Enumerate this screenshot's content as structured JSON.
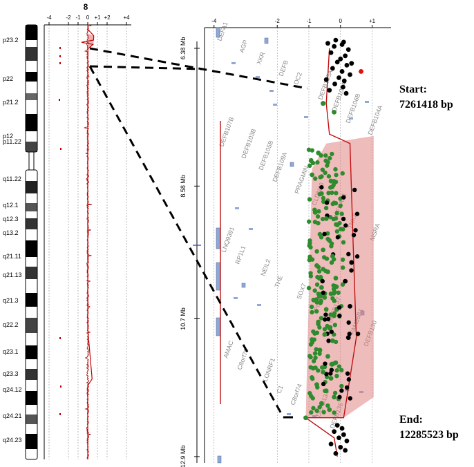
{
  "chromosome": {
    "number": "8",
    "bands": [
      "p23.2",
      "p22",
      "p21.2",
      "p12",
      "p11.22",
      "q11.22",
      "q12.1",
      "q12.3",
      "q13.2",
      "q21.11",
      "q21.13",
      "q21.3",
      "q22.2",
      "q23.1",
      "q23.3",
      "q24.12",
      "q24.21",
      "q24.23"
    ]
  },
  "chart_data": [
    {
      "type": "line",
      "panel": "whole-chromosome log2 ratio",
      "x_ticks": [
        "-4",
        "-2",
        "-1",
        "0",
        "+1",
        "+2",
        "+4"
      ],
      "x_tick_values": [
        -4,
        -2,
        -1,
        0,
        1,
        2,
        4
      ],
      "xlim": [
        -4.5,
        4.5
      ],
      "title": "8",
      "ylabel": "",
      "series": [
        {
          "values": [
            [
              0.02,
              0.0
            ],
            [
              0.0,
              0.01
            ],
            [
              0.62,
              0.025
            ],
            [
              0.6,
              0.035
            ],
            [
              -0.65,
              0.04
            ],
            [
              0.55,
              0.045
            ],
            [
              0.02,
              0.055
            ],
            [
              0.0,
              0.1
            ],
            [
              0.0,
              0.2
            ],
            [
              0.0,
              0.3
            ],
            [
              0.0,
              0.4
            ],
            [
              0.0,
              0.5
            ],
            [
              0.0,
              0.6
            ],
            [
              0.0,
              0.7
            ],
            [
              0.45,
              0.815
            ],
            [
              0.0,
              0.83
            ],
            [
              0.0,
              0.9
            ],
            [
              0.0,
              1.0
            ]
          ]
        }
      ]
    },
    {
      "type": "scatter",
      "panel": "zoomed region log2 ratio",
      "x_ticks": [
        "-4",
        "-2",
        "-1",
        "0",
        "+1"
      ],
      "x_tick_values": [
        -4,
        -2,
        -1,
        0,
        1
      ],
      "xlim": [
        -4.3,
        1.6
      ],
      "y_ticks": [
        "6.38 Mb",
        "8.58 Mb",
        "10.7 Mb",
        "12.9 Mb"
      ],
      "y_tick_values": [
        6.38,
        8.58,
        10.7,
        12.9
      ],
      "ylim": [
        6.05,
        13.0
      ],
      "title": "",
      "xlabel": "",
      "ylabel": "",
      "gene_labels": [
        "DEFA1",
        "AGP",
        "XKR",
        "DEFB",
        "LOC2",
        "DEFB105A",
        "DEFB103A",
        "DEFB106B",
        "DEFB104A",
        "DEFB107B",
        "DEFB103B",
        "DEFB105B",
        "DEFB109A",
        "PRAGMIN",
        "CLDN23",
        "MFHAS1",
        "TNKS",
        "MSRA",
        "LNQ9391",
        "RP1L1",
        "NEIL2",
        "THE",
        "SOX7",
        "PINX1",
        "DEFB137",
        "FAM86B1",
        "DEFB130",
        "AMAC",
        "C8orf79",
        "LONRF1",
        "C1",
        "C8orf74",
        "DEFB134",
        "DEFB136"
      ],
      "segments": [
        [
          -0.35,
          6.38
        ],
        [
          -0.45,
          7.26
        ],
        [
          -0.35,
          7.75
        ],
        [
          0.3,
          7.9
        ],
        [
          0.4,
          9.5
        ],
        [
          0.5,
          11.0
        ],
        [
          0.1,
          12.28
        ],
        [
          -1.1,
          12.28
        ],
        [
          -0.2,
          12.6
        ],
        [
          -0.1,
          12.9
        ]
      ],
      "aberration_region": [
        7.9,
        12.28
      ],
      "series": [
        {
          "name": "",
          "color": "#000000",
          "points": [
            [
              -0.15,
              6.25
            ],
            [
              0.1,
              6.28
            ],
            [
              0.05,
              6.32
            ],
            [
              -0.2,
              6.35
            ],
            [
              0.25,
              6.4
            ],
            [
              -0.3,
              6.45
            ],
            [
              0.15,
              6.5
            ],
            [
              0.0,
              6.55
            ],
            [
              -0.1,
              6.6
            ],
            [
              0.2,
              6.65
            ],
            [
              -0.25,
              6.7
            ],
            [
              0.05,
              6.75
            ],
            [
              0.3,
              6.8
            ],
            [
              -0.05,
              6.85
            ],
            [
              0.12,
              6.9
            ],
            [
              -0.18,
              6.95
            ],
            [
              0.08,
              7.0
            ],
            [
              -0.35,
              7.05
            ],
            [
              0.18,
              7.1
            ],
            [
              -0.4,
              6.3
            ],
            [
              0.35,
              6.62
            ],
            [
              -0.45,
              6.88
            ],
            [
              -0.55,
              7.26
            ],
            [
              0.15,
              10.1
            ],
            [
              0.3,
              10.5
            ],
            [
              0.25,
              11.0
            ],
            [
              0.35,
              9.8
            ],
            [
              -0.1,
              12.4
            ],
            [
              0.05,
              12.45
            ],
            [
              -0.2,
              12.5
            ],
            [
              0.1,
              12.55
            ],
            [
              -0.05,
              12.6
            ],
            [
              0.2,
              12.65
            ],
            [
              -0.3,
              12.7
            ],
            [
              0.0,
              12.75
            ],
            [
              0.15,
              12.8
            ],
            [
              -0.15,
              12.85
            ]
          ]
        },
        {
          "name": "",
          "color": "#2e8b2e",
          "points": [
            [
              -0.55,
              7.26
            ],
            [
              -0.2,
              7.4
            ],
            [
              -1.1,
              12.28
            ],
            [
              -0.7,
              8.05
            ],
            [
              -0.4,
              8.2
            ],
            [
              -0.9,
              8.4
            ],
            [
              -0.3,
              8.5
            ],
            [
              -0.6,
              8.7
            ],
            [
              -0.2,
              8.85
            ],
            [
              -0.8,
              9.0
            ],
            [
              -0.45,
              9.1
            ],
            [
              -0.1,
              9.2
            ],
            [
              -0.65,
              9.35
            ],
            [
              -0.35,
              9.45
            ],
            [
              -0.55,
              9.6
            ],
            [
              -0.25,
              9.7
            ],
            [
              -0.75,
              9.85
            ],
            [
              -0.4,
              9.95
            ],
            [
              -0.15,
              10.05
            ],
            [
              -0.6,
              10.2
            ],
            [
              -0.3,
              10.3
            ],
            [
              -0.85,
              10.4
            ],
            [
              -0.45,
              10.55
            ],
            [
              -0.2,
              10.65
            ],
            [
              -0.7,
              10.75
            ],
            [
              -0.35,
              10.85
            ],
            [
              -0.5,
              10.95
            ],
            [
              -0.25,
              11.05
            ],
            [
              -0.65,
              11.2
            ],
            [
              -0.4,
              11.3
            ],
            [
              -0.15,
              11.4
            ],
            [
              -0.55,
              11.55
            ],
            [
              -0.3,
              11.65
            ],
            [
              -0.75,
              11.75
            ],
            [
              -0.45,
              11.85
            ],
            [
              -0.2,
              11.95
            ],
            [
              -0.6,
              12.05
            ],
            [
              -0.35,
              12.15
            ]
          ]
        },
        {
          "name": "",
          "color": "#e01010",
          "points": [
            [
              0.65,
              6.75
            ]
          ]
        }
      ]
    }
  ],
  "annotations": {
    "start_label": "Start:",
    "start_value": "7261418 bp",
    "end_label": "End:",
    "end_value": "12285523 bp"
  }
}
